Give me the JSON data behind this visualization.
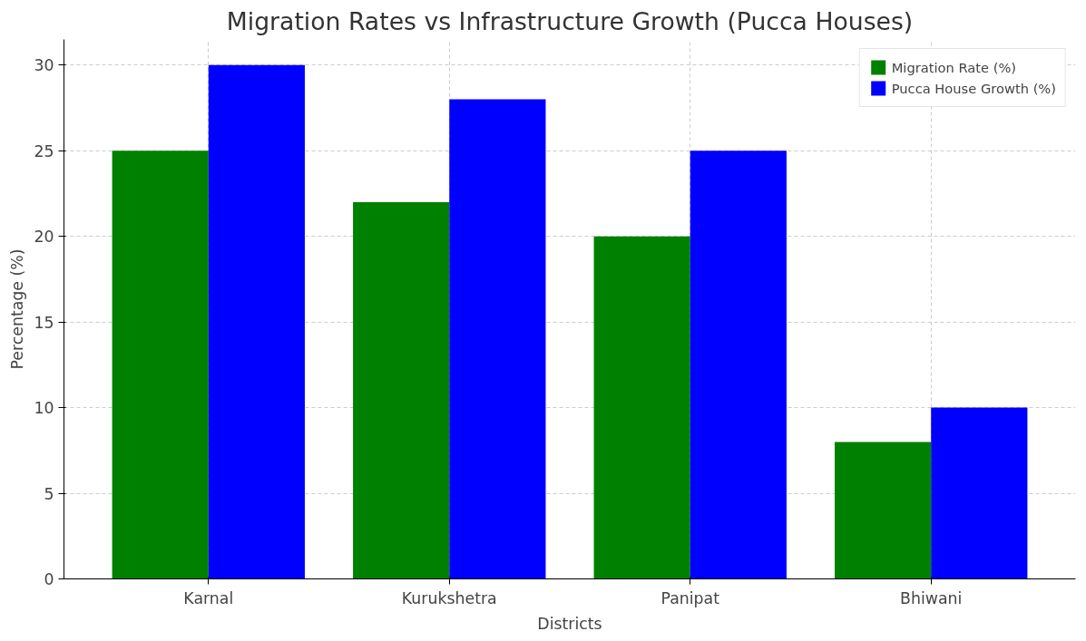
{
  "chart_data": {
    "type": "bar",
    "title": "Migration Rates vs Infrastructure Growth (Pucca Houses)",
    "xlabel": "Districts",
    "ylabel": "Percentage (%)",
    "categories": [
      "Karnal",
      "Kurukshetra",
      "Panipat",
      "Bhiwani"
    ],
    "series": [
      {
        "name": "Migration Rate (%)",
        "color": "#008000",
        "values": [
          25,
          22,
          20,
          8
        ]
      },
      {
        "name": "Pucca House Growth (%)",
        "color": "#0000ff",
        "values": [
          30,
          28,
          25,
          10
        ]
      }
    ],
    "ylim": [
      0,
      31.5
    ],
    "yticks": [
      0,
      5,
      10,
      15,
      20,
      25,
      30
    ],
    "grid": true,
    "legend": "top right"
  }
}
